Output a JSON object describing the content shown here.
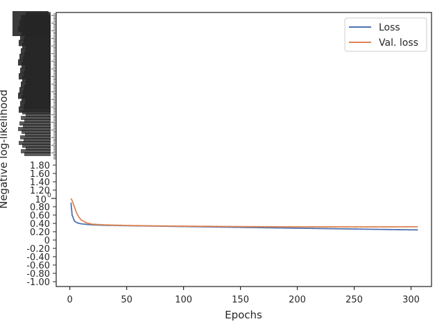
{
  "chart_data": {
    "type": "line",
    "xlabel": "Epochs",
    "ylabel": "Negative log-likelihood",
    "xlim": [
      -12,
      318
    ],
    "xticks": [
      0,
      50,
      100,
      150,
      200,
      250,
      300
    ],
    "y_scale": "symlog",
    "y_upper_tick_labels": [
      "10^0"
    ],
    "y_lower_tick_labels": [
      "1.80",
      "1.60",
      "1.40",
      "1.20",
      "0.80",
      "0.60",
      "0.40",
      "0.20",
      "0",
      "-0.20",
      "-0.40",
      "-0.60",
      "-0.80",
      "-1.00"
    ],
    "y_dense_labels_note_free": [
      "10^0"
    ],
    "grid": false,
    "legend_position": "top-right",
    "series": [
      {
        "name": "Loss",
        "color": "#4c72b0",
        "x": [
          1,
          2,
          4,
          6,
          8,
          10,
          15,
          20,
          30,
          50,
          75,
          100,
          125,
          150,
          175,
          200,
          225,
          250,
          275,
          300,
          306
        ],
        "y": [
          0.9,
          0.6,
          0.46,
          0.42,
          0.4,
          0.39,
          0.375,
          0.365,
          0.355,
          0.345,
          0.335,
          0.325,
          0.315,
          0.305,
          0.295,
          0.285,
          0.275,
          0.265,
          0.255,
          0.245,
          0.245
        ]
      },
      {
        "name": "Val. loss",
        "color": "#dd8452",
        "x": [
          1,
          2,
          4,
          6,
          8,
          10,
          15,
          20,
          30,
          50,
          75,
          100,
          125,
          150,
          175,
          200,
          225,
          250,
          275,
          300,
          306
        ],
        "y": [
          1.0,
          0.95,
          0.8,
          0.65,
          0.55,
          0.48,
          0.41,
          0.38,
          0.365,
          0.35,
          0.34,
          0.333,
          0.328,
          0.323,
          0.32,
          0.318,
          0.317,
          0.317,
          0.317,
          0.318,
          0.318
        ]
      }
    ]
  }
}
